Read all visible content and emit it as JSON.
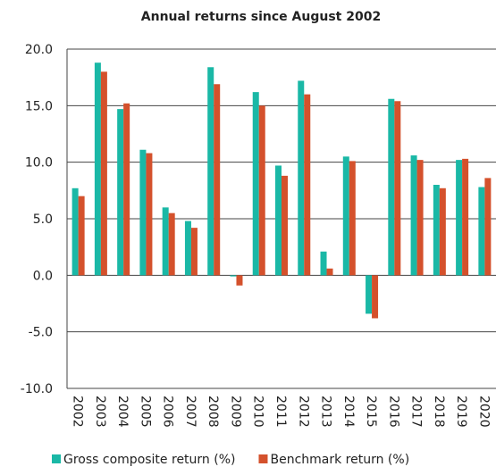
{
  "chart_data": {
    "type": "bar",
    "title": "Annual returns since August 2002",
    "categories": [
      "2002",
      "2003",
      "2004",
      "2005",
      "2006",
      "2007",
      "2008",
      "2009",
      "2010",
      "2011",
      "2012",
      "2013",
      "2014",
      "2015",
      "2016",
      "2017",
      "2018",
      "2019",
      "2020"
    ],
    "series": [
      {
        "name": "Gross composite return (%)",
        "color": "#1ab8a6",
        "values": [
          7.7,
          18.8,
          14.7,
          11.1,
          6.0,
          4.8,
          18.4,
          -0.1,
          16.2,
          9.7,
          17.2,
          2.1,
          10.5,
          -3.4,
          15.6,
          10.6,
          8.0,
          10.2,
          7.8
        ]
      },
      {
        "name": "Benchmark return (%)",
        "color": "#d4512c",
        "values": [
          7.0,
          18.0,
          15.2,
          10.8,
          5.5,
          4.2,
          16.9,
          -0.9,
          15.0,
          8.8,
          16.0,
          0.6,
          10.1,
          -3.8,
          15.4,
          10.2,
          7.7,
          10.3,
          8.6
        ]
      }
    ],
    "ylim": [
      -10,
      20
    ],
    "yticks": [
      {
        "value": -10,
        "label": "-10.0"
      },
      {
        "value": -5,
        "label": "-5.0"
      },
      {
        "value": 0,
        "label": "0.0"
      },
      {
        "value": 5,
        "label": "5.0"
      },
      {
        "value": 10,
        "label": "10.0"
      },
      {
        "value": 15,
        "label": "15.0"
      },
      {
        "value": 20,
        "label": "20.0"
      }
    ],
    "grid": true,
    "legend": "bottom"
  }
}
